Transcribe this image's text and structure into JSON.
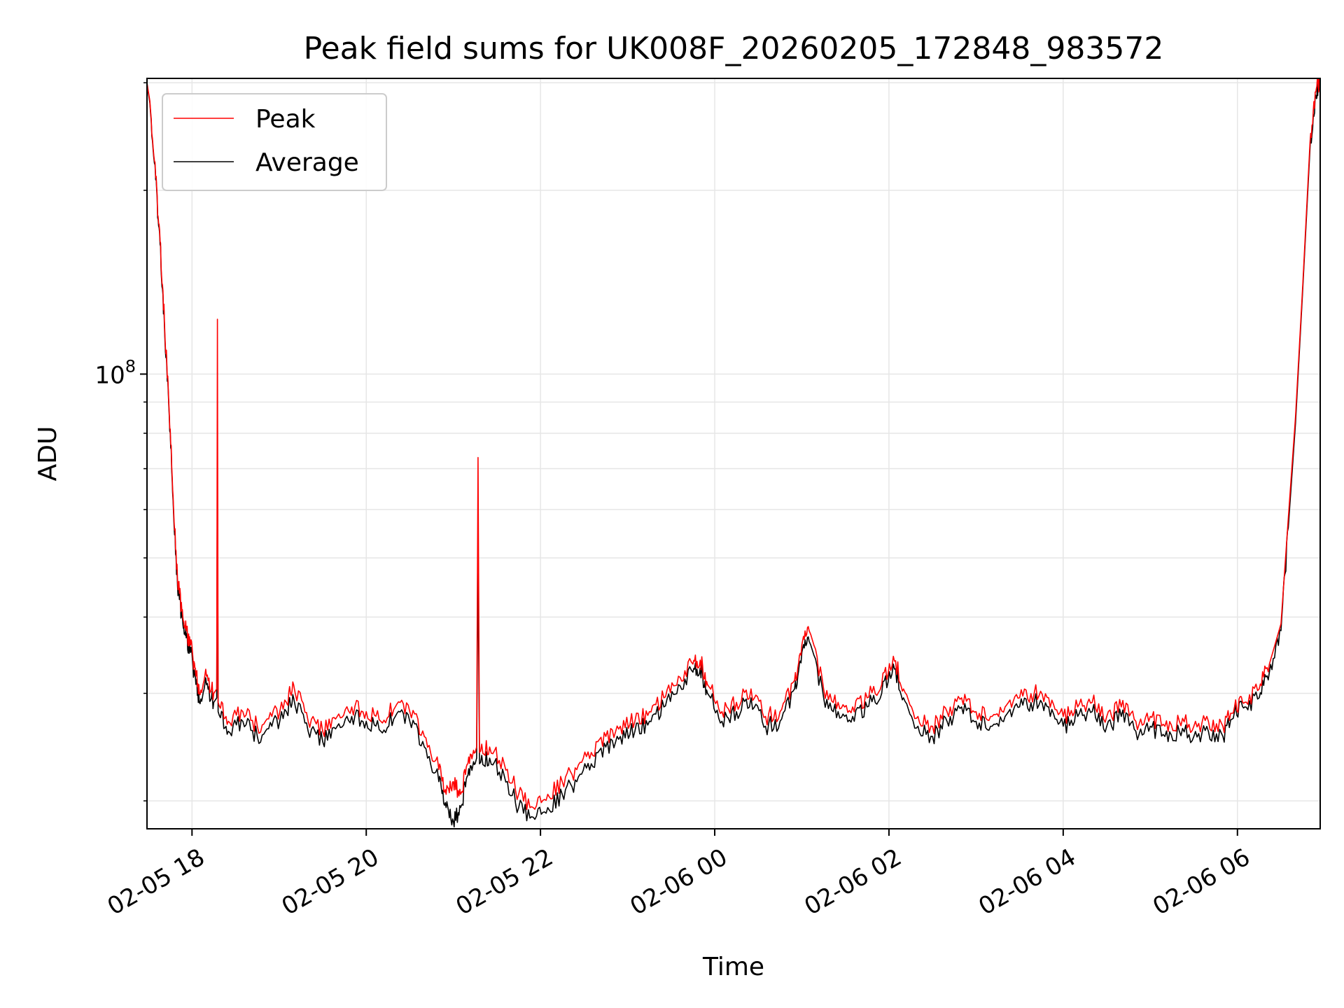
{
  "chart_data": {
    "type": "line",
    "title": "Peak field sums for UK008F_20260205_172848_983572",
    "xlabel": "Time",
    "ylabel": "ADU",
    "y_scale": "log",
    "ylim": [
      18000000,
      305000000
    ],
    "xlim": [
      "2026-02-05 17:29",
      "2026-02-06 06:57"
    ],
    "grid": true,
    "legend": {
      "placement": "top-left",
      "entries": [
        "Peak",
        "Average"
      ]
    },
    "x_ticks": [
      {
        "time": "2026-02-05 18:00",
        "label": "02-05 18"
      },
      {
        "time": "2026-02-05 20:00",
        "label": "02-05 20"
      },
      {
        "time": "2026-02-05 22:00",
        "label": "02-05 22"
      },
      {
        "time": "2026-02-06 00:00",
        "label": "02-06 00"
      },
      {
        "time": "2026-02-06 02:00",
        "label": "02-06 02"
      },
      {
        "time": "2026-02-06 04:00",
        "label": "02-06 04"
      },
      {
        "time": "2026-02-06 06:00",
        "label": "02-06 06"
      }
    ],
    "y_major_ticks": [
      {
        "value": 100000000,
        "label": "10",
        "exponent": "8"
      }
    ],
    "y_minor_ticks": [
      20000000,
      30000000,
      40000000,
      50000000,
      60000000,
      70000000,
      80000000,
      90000000,
      200000000,
      300000000
    ],
    "series": [
      {
        "name": "Peak",
        "color": "#ff0000",
        "points": [
          [
            "2026-02-05 17:29",
            300000000
          ],
          [
            "2026-02-05 17:31",
            280000000
          ],
          [
            "2026-02-05 17:35",
            210000000
          ],
          [
            "2026-02-05 17:38",
            165000000
          ],
          [
            "2026-02-05 17:41",
            122000000
          ],
          [
            "2026-02-05 17:44",
            90000000
          ],
          [
            "2026-02-05 17:47",
            63000000
          ],
          [
            "2026-02-05 17:50",
            46000000
          ],
          [
            "2026-02-05 17:53",
            41000000
          ],
          [
            "2026-02-05 17:56",
            38000000
          ],
          [
            "2026-02-05 17:59",
            36000000
          ],
          [
            "2026-02-05 18:02",
            33000000
          ],
          [
            "2026-02-05 18:05",
            30000000
          ],
          [
            "2026-02-05 18:10",
            32000000
          ],
          [
            "2026-02-05 18:15",
            30000000
          ],
          [
            "2026-02-05 18:17",
            30500000
          ],
          [
            "2026-02-05 18:17:30",
            123000000
          ],
          [
            "2026-02-05 18:18",
            29000000
          ],
          [
            "2026-02-05 18:25",
            27000000
          ],
          [
            "2026-02-05 18:35",
            28000000
          ],
          [
            "2026-02-05 18:45",
            26500000
          ],
          [
            "2026-02-05 18:55",
            27500000
          ],
          [
            "2026-02-05 19:05",
            29000000
          ],
          [
            "2026-02-05 19:10",
            31000000
          ],
          [
            "2026-02-05 19:20",
            27000000
          ],
          [
            "2026-02-05 19:30",
            26000000
          ],
          [
            "2026-02-05 19:40",
            27500000
          ],
          [
            "2026-02-05 19:50",
            28500000
          ],
          [
            "2026-02-05 20:00",
            28000000
          ],
          [
            "2026-02-05 20:10",
            27000000
          ],
          [
            "2026-02-05 20:20",
            28500000
          ],
          [
            "2026-02-05 20:30",
            28000000
          ],
          [
            "2026-02-05 20:40",
            25500000
          ],
          [
            "2026-02-05 20:50",
            22500000
          ],
          [
            "2026-02-05 20:55",
            20500000
          ],
          [
            "2026-02-05 21:00",
            21500000
          ],
          [
            "2026-02-05 21:05",
            20500000
          ],
          [
            "2026-02-05 21:10",
            23000000
          ],
          [
            "2026-02-05 21:15",
            24000000
          ],
          [
            "2026-02-05 21:16",
            24500000
          ],
          [
            "2026-02-05 21:17",
            73000000
          ],
          [
            "2026-02-05 21:18",
            24000000
          ],
          [
            "2026-02-05 21:25",
            24500000
          ],
          [
            "2026-02-05 21:35",
            23000000
          ],
          [
            "2026-02-05 21:45",
            20500000
          ],
          [
            "2026-02-05 21:55",
            19500000
          ],
          [
            "2026-02-05 22:05",
            20500000
          ],
          [
            "2026-02-05 22:15",
            21500000
          ],
          [
            "2026-02-05 22:25",
            22500000
          ],
          [
            "2026-02-05 22:35",
            24000000
          ],
          [
            "2026-02-05 22:45",
            25500000
          ],
          [
            "2026-02-05 22:55",
            26500000
          ],
          [
            "2026-02-05 23:05",
            27000000
          ],
          [
            "2026-02-05 23:15",
            28000000
          ],
          [
            "2026-02-05 23:25",
            29500000
          ],
          [
            "2026-02-05 23:35",
            32000000
          ],
          [
            "2026-02-05 23:45",
            33500000
          ],
          [
            "2026-02-05 23:50",
            34000000
          ],
          [
            "2026-02-05 23:55",
            31000000
          ],
          [
            "2026-02-06 00:05",
            28000000
          ],
          [
            "2026-02-06 00:15",
            29000000
          ],
          [
            "2026-02-06 00:25",
            30500000
          ],
          [
            "2026-02-06 00:35",
            27500000
          ],
          [
            "2026-02-06 00:45",
            28000000
          ],
          [
            "2026-02-06 00:55",
            31500000
          ],
          [
            "2026-02-06 01:00",
            36000000
          ],
          [
            "2026-02-06 01:05",
            38000000
          ],
          [
            "2026-02-06 01:15",
            30500000
          ],
          [
            "2026-02-06 01:25",
            29000000
          ],
          [
            "2026-02-06 01:35",
            28500000
          ],
          [
            "2026-02-06 01:45",
            29500000
          ],
          [
            "2026-02-06 01:55",
            31000000
          ],
          [
            "2026-02-06 02:03",
            34500000
          ],
          [
            "2026-02-06 02:10",
            30500000
          ],
          [
            "2026-02-06 02:20",
            27500000
          ],
          [
            "2026-02-06 02:30",
            26500000
          ],
          [
            "2026-02-06 02:40",
            28000000
          ],
          [
            "2026-02-06 02:50",
            29500000
          ],
          [
            "2026-02-06 03:00",
            28000000
          ],
          [
            "2026-02-06 03:10",
            27500000
          ],
          [
            "2026-02-06 03:20",
            28500000
          ],
          [
            "2026-02-06 03:30",
            29500000
          ],
          [
            "2026-02-06 03:40",
            30000000
          ],
          [
            "2026-02-06 03:50",
            29500000
          ],
          [
            "2026-02-06 04:00",
            27500000
          ],
          [
            "2026-02-06 04:10",
            28500000
          ],
          [
            "2026-02-06 04:20",
            29000000
          ],
          [
            "2026-02-06 04:30",
            27500000
          ],
          [
            "2026-02-06 04:40",
            28500000
          ],
          [
            "2026-02-06 04:50",
            27000000
          ],
          [
            "2026-02-06 05:00",
            27500000
          ],
          [
            "2026-02-06 05:10",
            26500000
          ],
          [
            "2026-02-06 05:20",
            27000000
          ],
          [
            "2026-02-06 05:30",
            26500000
          ],
          [
            "2026-02-06 05:40",
            27000000
          ],
          [
            "2026-02-06 05:50",
            26500000
          ],
          [
            "2026-02-06 05:58",
            28500000
          ],
          [
            "2026-02-06 06:05",
            29000000
          ],
          [
            "2026-02-06 06:15",
            30500000
          ],
          [
            "2026-02-06 06:22",
            33500000
          ],
          [
            "2026-02-06 06:30",
            39000000
          ],
          [
            "2026-02-06 06:35",
            58000000
          ],
          [
            "2026-02-06 06:40",
            85000000
          ],
          [
            "2026-02-06 06:45",
            140000000
          ],
          [
            "2026-02-06 06:50",
            240000000
          ],
          [
            "2026-02-06 06:54",
            290000000
          ],
          [
            "2026-02-06 06:57",
            305000000
          ]
        ]
      },
      {
        "name": "Average",
        "color": "#000000",
        "points": [
          [
            "2026-02-05 17:29",
            298000000
          ],
          [
            "2026-02-05 17:31",
            278000000
          ],
          [
            "2026-02-05 17:35",
            208000000
          ],
          [
            "2026-02-05 17:38",
            163000000
          ],
          [
            "2026-02-05 17:41",
            120000000
          ],
          [
            "2026-02-05 17:44",
            89000000
          ],
          [
            "2026-02-05 17:47",
            62000000
          ],
          [
            "2026-02-05 17:50",
            45000000
          ],
          [
            "2026-02-05 17:53",
            40000000
          ],
          [
            "2026-02-05 17:56",
            37000000
          ],
          [
            "2026-02-05 17:59",
            35000000
          ],
          [
            "2026-02-05 18:02",
            32000000
          ],
          [
            "2026-02-05 18:05",
            29000000
          ],
          [
            "2026-02-05 18:10",
            31000000
          ],
          [
            "2026-02-05 18:15",
            29000000
          ],
          [
            "2026-02-05 18:17",
            29500000
          ],
          [
            "2026-02-05 18:17:30",
            74000000
          ],
          [
            "2026-02-05 18:18",
            28000000
          ],
          [
            "2026-02-05 18:25",
            26000000
          ],
          [
            "2026-02-05 18:35",
            27000000
          ],
          [
            "2026-02-05 18:45",
            25500000
          ],
          [
            "2026-02-05 18:55",
            26500000
          ],
          [
            "2026-02-05 19:05",
            28000000
          ],
          [
            "2026-02-05 19:10",
            29500000
          ],
          [
            "2026-02-05 19:20",
            26000000
          ],
          [
            "2026-02-05 19:30",
            25000000
          ],
          [
            "2026-02-05 19:40",
            26500000
          ],
          [
            "2026-02-05 19:50",
            27500000
          ],
          [
            "2026-02-05 20:00",
            27000000
          ],
          [
            "2026-02-05 20:10",
            26000000
          ],
          [
            "2026-02-05 20:20",
            27500000
          ],
          [
            "2026-02-05 20:30",
            27000000
          ],
          [
            "2026-02-05 20:40",
            24500000
          ],
          [
            "2026-02-05 20:50",
            21500000
          ],
          [
            "2026-02-05 20:55",
            19500000
          ],
          [
            "2026-02-05 21:00",
            18500000
          ],
          [
            "2026-02-05 21:05",
            19500000
          ],
          [
            "2026-02-05 21:10",
            22000000
          ],
          [
            "2026-02-05 21:15",
            23000000
          ],
          [
            "2026-02-05 21:16",
            23500000
          ],
          [
            "2026-02-05 21:17",
            51000000
          ],
          [
            "2026-02-05 21:18",
            23000000
          ],
          [
            "2026-02-05 21:25",
            23500000
          ],
          [
            "2026-02-05 21:35",
            22000000
          ],
          [
            "2026-02-05 21:45",
            19500000
          ],
          [
            "2026-02-05 21:55",
            18800000
          ],
          [
            "2026-02-05 22:05",
            19500000
          ],
          [
            "2026-02-05 22:15",
            20500000
          ],
          [
            "2026-02-05 22:25",
            21500000
          ],
          [
            "2026-02-05 22:35",
            23000000
          ],
          [
            "2026-02-05 22:45",
            24500000
          ],
          [
            "2026-02-05 22:55",
            25500000
          ],
          [
            "2026-02-05 23:05",
            26000000
          ],
          [
            "2026-02-05 23:15",
            27000000
          ],
          [
            "2026-02-05 23:25",
            28500000
          ],
          [
            "2026-02-05 23:35",
            31000000
          ],
          [
            "2026-02-05 23:45",
            32500000
          ],
          [
            "2026-02-05 23:50",
            33000000
          ],
          [
            "2026-02-05 23:55",
            30000000
          ],
          [
            "2026-02-06 00:05",
            27000000
          ],
          [
            "2026-02-06 00:15",
            28000000
          ],
          [
            "2026-02-06 00:25",
            29500000
          ],
          [
            "2026-02-06 00:35",
            26500000
          ],
          [
            "2026-02-06 00:45",
            27000000
          ],
          [
            "2026-02-06 00:55",
            30500000
          ],
          [
            "2026-02-06 01:00",
            35000000
          ],
          [
            "2026-02-06 01:05",
            36500000
          ],
          [
            "2026-02-06 01:15",
            29500000
          ],
          [
            "2026-02-06 01:25",
            28000000
          ],
          [
            "2026-02-06 01:35",
            27500000
          ],
          [
            "2026-02-06 01:45",
            28500000
          ],
          [
            "2026-02-06 01:55",
            30000000
          ],
          [
            "2026-02-06 02:03",
            33500000
          ],
          [
            "2026-02-06 02:10",
            29500000
          ],
          [
            "2026-02-06 02:20",
            26500000
          ],
          [
            "2026-02-06 02:30",
            25500000
          ],
          [
            "2026-02-06 02:40",
            27000000
          ],
          [
            "2026-02-06 02:50",
            28500000
          ],
          [
            "2026-02-06 03:00",
            27000000
          ],
          [
            "2026-02-06 03:10",
            26500000
          ],
          [
            "2026-02-06 03:20",
            27500000
          ],
          [
            "2026-02-06 03:30",
            28500000
          ],
          [
            "2026-02-06 03:40",
            29000000
          ],
          [
            "2026-02-06 03:50",
            28500000
          ],
          [
            "2026-02-06 04:00",
            26500000
          ],
          [
            "2026-02-06 04:10",
            27500000
          ],
          [
            "2026-02-06 04:20",
            28000000
          ],
          [
            "2026-02-06 04:30",
            26500000
          ],
          [
            "2026-02-06 04:40",
            27500000
          ],
          [
            "2026-02-06 04:50",
            26000000
          ],
          [
            "2026-02-06 05:00",
            26500000
          ],
          [
            "2026-02-06 05:10",
            25500000
          ],
          [
            "2026-02-06 05:20",
            26000000
          ],
          [
            "2026-02-06 05:30",
            25500000
          ],
          [
            "2026-02-06 05:40",
            26000000
          ],
          [
            "2026-02-06 05:50",
            25500000
          ],
          [
            "2026-02-06 05:58",
            28000000
          ],
          [
            "2026-02-06 06:05",
            28500000
          ],
          [
            "2026-02-06 06:15",
            29500000
          ],
          [
            "2026-02-06 06:22",
            32500000
          ],
          [
            "2026-02-06 06:30",
            38000000
          ],
          [
            "2026-02-06 06:35",
            56000000
          ],
          [
            "2026-02-06 06:40",
            83000000
          ],
          [
            "2026-02-06 06:45",
            138000000
          ],
          [
            "2026-02-06 06:50",
            235000000
          ],
          [
            "2026-02-06 06:54",
            286000000
          ],
          [
            "2026-02-06 06:57",
            302000000
          ]
        ]
      }
    ]
  }
}
